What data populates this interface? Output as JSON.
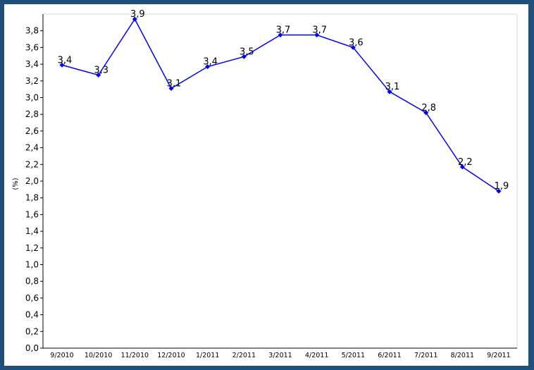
{
  "chart_data": {
    "type": "line",
    "categories": [
      "9/2010",
      "10/2010",
      "11/2010",
      "12/2010",
      "1/2011",
      "2/2011",
      "3/2011",
      "4/2011",
      "5/2011",
      "6/2011",
      "7/2011",
      "8/2011",
      "9/2011"
    ],
    "series": [
      {
        "values": [
          3.39,
          3.27,
          3.94,
          3.11,
          3.37,
          3.49,
          3.75,
          3.75,
          3.6,
          3.07,
          2.82,
          2.17,
          1.88
        ],
        "labels": [
          "3,4",
          "3,3",
          "3,9",
          "3,1",
          "3,4",
          "3,5",
          "3,7",
          "3,7",
          "3,6",
          "3,1",
          "2,8",
          "2,2",
          "1,9"
        ],
        "color": "#0000ff"
      }
    ],
    "ylabel": "(%)",
    "ylim": [
      0,
      4.0
    ],
    "yticks": [
      "0,0",
      "0,2",
      "0,4",
      "0,6",
      "0,8",
      "1,0",
      "1,2",
      "1,4",
      "1,6",
      "1,8",
      "2,0",
      "2,2",
      "2,4",
      "2,6",
      "2,8",
      "3,0",
      "3,2",
      "3,4",
      "3,6",
      "3,8"
    ],
    "grid": false,
    "legend": "none"
  },
  "colors": {
    "frame": "#1f4e79",
    "line": "#0000ff",
    "axis": "#000000",
    "plot_border": "#d9d9d9"
  }
}
